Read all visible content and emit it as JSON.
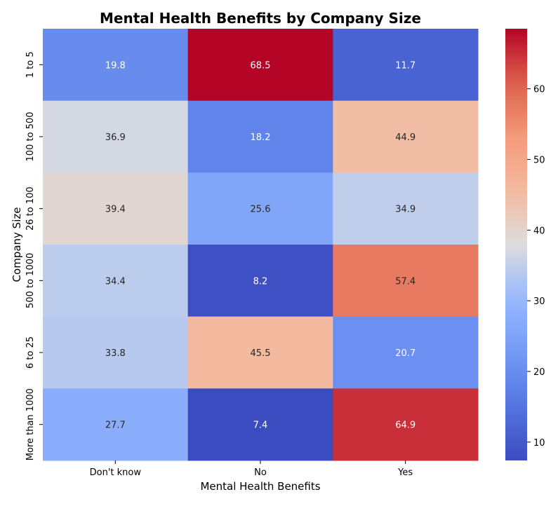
{
  "chart_data": {
    "type": "heatmap",
    "title": "Mental Health Benefits by Company Size",
    "xlabel": "Mental Health Benefits",
    "ylabel": "Company Size",
    "x_categories": [
      "Don't know",
      "No",
      "Yes"
    ],
    "y_categories": [
      "1 to 5",
      "100 to 500",
      "26 to 100",
      "500 to 1000",
      "6 to 25",
      "More than 1000"
    ],
    "values": [
      [
        19.8,
        68.5,
        11.7
      ],
      [
        36.9,
        18.2,
        44.9
      ],
      [
        39.4,
        25.6,
        34.9
      ],
      [
        34.4,
        8.2,
        57.4
      ],
      [
        33.8,
        45.5,
        20.7
      ],
      [
        27.7,
        7.4,
        64.9
      ]
    ],
    "colormap": "coolwarm",
    "colorbar": {
      "min": 7.4,
      "max": 68.5,
      "ticks": [
        10,
        20,
        30,
        40,
        50,
        60
      ],
      "tick_labels": [
        "10",
        "20",
        "30",
        "40",
        "50",
        "60"
      ]
    },
    "grid": false,
    "legend": "colorbar-right"
  }
}
